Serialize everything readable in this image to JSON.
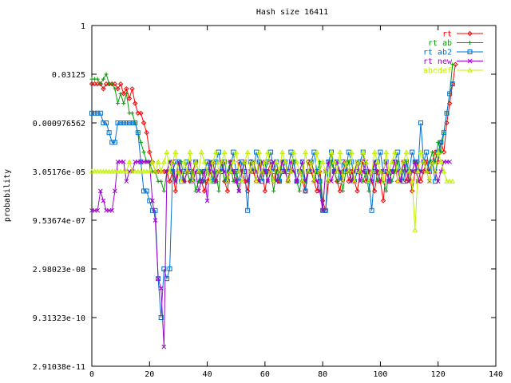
{
  "chart_data": {
    "type": "line",
    "title": "Hash size 16411",
    "xlabel": "",
    "ylabel": "probability",
    "xlim": [
      0,
      140
    ],
    "ylim_log2": [
      -35,
      0
    ],
    "y_scale": "log2",
    "x_ticks": [
      0,
      20,
      40,
      60,
      80,
      100,
      120,
      140
    ],
    "x_tick_labels": [
      "0",
      "20",
      "40",
      "60",
      "80",
      "100",
      "120",
      "140"
    ],
    "y_ticks_log2": [
      0,
      -5,
      -10,
      -15,
      -20,
      -25,
      -30,
      -35
    ],
    "y_tick_labels": [
      "1",
      "0.03125",
      "0.000976562",
      "3.05176e-05",
      "9.53674e-07",
      "2.98023e-08",
      "9.31323e-10",
      "2.91038e-11"
    ],
    "grid": false,
    "legend_position": "top-right",
    "legend_entries": [
      "rt",
      "rt ab",
      "rt ab2",
      "rt new",
      "abcdef"
    ],
    "series": [
      {
        "name": "rt",
        "color": "#ff0000",
        "marker": "diamond",
        "log2_values": [
          -6,
          -6,
          -6,
          -6,
          -6.5,
          -6,
          -6,
          -6,
          -6,
          -6.5,
          -6,
          -7,
          -6.5,
          -7.5,
          -6.5,
          -8,
          -9,
          -9,
          -10,
          -11,
          -13,
          -14,
          -15,
          -15,
          -15,
          -15,
          -15,
          -16,
          -15,
          -17,
          -15,
          -15,
          -16,
          -15,
          -16,
          -15,
          -14,
          -15,
          -16,
          -17,
          -16,
          -15,
          -14,
          -16,
          -15,
          -14,
          -16,
          -17,
          -14,
          -15,
          -16,
          -14,
          -15,
          -16,
          -17,
          -14,
          -15,
          -16,
          -14,
          -15,
          -17,
          -15,
          -14,
          -16,
          -15,
          -16,
          -14,
          -15,
          -16,
          -15,
          -14,
          -16,
          -15,
          -16,
          -17,
          -14,
          -15,
          -16,
          -17,
          -15,
          -18,
          -19,
          -16,
          -14,
          -15,
          -16,
          -17,
          -15,
          -14,
          -16,
          -15,
          -16,
          -17,
          -15,
          -14,
          -16,
          -15,
          -16,
          -17,
          -15,
          -16,
          -18,
          -15,
          -16,
          -15,
          -14,
          -16,
          -15,
          -14,
          -16,
          -15,
          -17,
          -15,
          -14,
          -16,
          -15,
          -14,
          -15,
          -14,
          -13,
          -14,
          -12,
          -13,
          -10,
          -8,
          -6,
          -4
        ]
      },
      {
        "name": "rt ab",
        "color": "#00a000",
        "marker": "plus",
        "log2_values": [
          -5.5,
          -5.5,
          -5.5,
          -6,
          -5.5,
          -5,
          -6,
          -6,
          -6.5,
          -8,
          -7,
          -8,
          -7,
          -9,
          -9,
          -10,
          -11,
          -12,
          -13,
          -14,
          -14,
          -15,
          -15,
          -16,
          -16,
          -17,
          -15,
          -14,
          -15,
          -16,
          -15,
          -14,
          -16,
          -15,
          -16,
          -15,
          -17,
          -16,
          -15,
          -16,
          -15,
          -14,
          -16,
          -15,
          -17,
          -14,
          -16,
          -15,
          -14,
          -16,
          -15,
          -17,
          -15,
          -14,
          -16,
          -15,
          -14,
          -15,
          -16,
          -15,
          -14,
          -16,
          -15,
          -17,
          -15,
          -16,
          -14,
          -15,
          -16,
          -15,
          -14,
          -16,
          -17,
          -15,
          -16,
          -15,
          -14,
          -16,
          -15,
          -14,
          -19,
          -15,
          -16,
          -14,
          -15,
          -16,
          -15,
          -17,
          -15,
          -14,
          -16,
          -15,
          -14,
          -15,
          -16,
          -15,
          -17,
          -15,
          -14,
          -16,
          -15,
          -16,
          -17,
          -15,
          -16,
          -15,
          -14,
          -16,
          -15,
          -14,
          -16,
          -15,
          -14,
          -16,
          -15,
          -14,
          -15,
          -14,
          -13,
          -14,
          -12,
          -13,
          -11,
          -9,
          -7,
          -4
        ]
      },
      {
        "name": "rt ab2",
        "color": "#0070d0",
        "marker": "square",
        "log2_values": [
          -9,
          -9,
          -9,
          -9,
          -10,
          -10,
          -11,
          -12,
          -12,
          -10,
          -10,
          -10,
          -10,
          -10,
          -10,
          -10,
          -11,
          -14,
          -17,
          -17,
          -18,
          -19,
          -19,
          -26,
          -30,
          -25,
          -26,
          -25,
          -15,
          -14,
          -14,
          -16,
          -15,
          -14,
          -15,
          -16,
          -14,
          -15,
          -16,
          -15,
          -14,
          -15,
          -16,
          -14,
          -13,
          -15,
          -14,
          -16,
          -15,
          -13,
          -15,
          -16,
          -14,
          -15,
          -19,
          -14,
          -15,
          -13,
          -14,
          -16,
          -15,
          -14,
          -13,
          -15,
          -14,
          -16,
          -15,
          -14,
          -15,
          -13,
          -14,
          -16,
          -15,
          -14,
          -17,
          -15,
          -14,
          -13,
          -15,
          -16,
          -19,
          -19,
          -14,
          -13,
          -15,
          -14,
          -16,
          -14,
          -15,
          -13,
          -14,
          -16,
          -15,
          -14,
          -13,
          -15,
          -16,
          -19,
          -15,
          -14,
          -13,
          -15,
          -14,
          -16,
          -15,
          -14,
          -13,
          -15,
          -16,
          -14,
          -15,
          -13,
          -14,
          -15,
          -10,
          -14,
          -13,
          -15,
          -14,
          -16,
          -13,
          -12,
          -11,
          -9,
          -7,
          -6
        ]
      },
      {
        "name": "rt new",
        "color": "#a000d0",
        "marker": "cross",
        "log2_values": [
          -19,
          -19,
          -19,
          -17,
          -18,
          -19,
          -19,
          -19,
          -17,
          -14,
          -14,
          -14,
          -16,
          -15,
          -15,
          -14,
          -14,
          -14,
          -14,
          -14,
          -14,
          -18,
          -20,
          -26,
          -27,
          -33,
          -15,
          -14,
          -14,
          -16,
          -14,
          -15,
          -16,
          -15,
          -14,
          -16,
          -15,
          -17,
          -16,
          -15,
          -18,
          -14,
          -15,
          -16,
          -15,
          -14,
          -15,
          -16,
          -14,
          -15,
          -16,
          -17,
          -15,
          -14,
          -16,
          -15,
          -14,
          -15,
          -16,
          -14,
          -15,
          -16,
          -15,
          -14,
          -16,
          -15,
          -14,
          -15,
          -16,
          -14,
          -15,
          -16,
          -15,
          -14,
          -16,
          -15,
          -14,
          -15,
          -16,
          -17,
          -19,
          -15,
          -14,
          -16,
          -15,
          -14,
          -15,
          -16,
          -14,
          -15,
          -16,
          -15,
          -14,
          -16,
          -15,
          -14,
          -15,
          -16,
          -14,
          -15,
          -16,
          -15,
          -14,
          -16,
          -15,
          -14,
          -15,
          -16,
          -14,
          -15,
          -16,
          -15,
          -14,
          -16,
          -15,
          -14,
          -15,
          -16,
          -14,
          -15,
          -16,
          -15,
          -14,
          -14,
          -14
        ]
      },
      {
        "name": "abcdef",
        "color": "#c0f000",
        "marker": "triangle",
        "log2_values": [
          -15,
          -15,
          -15,
          -15,
          -15,
          -15,
          -15,
          -15,
          -15,
          -15,
          -15,
          -15,
          -15,
          -14,
          -15,
          -15,
          -15,
          -15,
          -15,
          -15,
          -15,
          -14,
          -15,
          -14,
          -15,
          -14,
          -13,
          -15,
          -14,
          -13,
          -15,
          -16,
          -14,
          -15,
          -13,
          -16,
          -14,
          -15,
          -13,
          -14,
          -15,
          -16,
          -14,
          -13,
          -15,
          -14,
          -13,
          -16,
          -15,
          -14,
          -13,
          -15,
          -16,
          -14,
          -13,
          -15,
          -14,
          -16,
          -13,
          -15,
          -14,
          -13,
          -15,
          -16,
          -14,
          -15,
          -13,
          -14,
          -16,
          -15,
          -13,
          -14,
          -15,
          -16,
          -13,
          -15,
          -14,
          -16,
          -13,
          -15,
          -14,
          -15,
          -16,
          -13,
          -14,
          -15,
          -13,
          -16,
          -14,
          -15,
          -13,
          -16,
          -14,
          -15,
          -13,
          -14,
          -16,
          -15,
          -13,
          -14,
          -15,
          -16,
          -13,
          -15,
          -14,
          -13,
          -16,
          -15,
          -14,
          -13,
          -15,
          -16,
          -21,
          -15,
          -13,
          -14,
          -15,
          -16,
          -14,
          -15,
          -13,
          -14,
          -15,
          -16,
          -16,
          -16
        ]
      }
    ]
  }
}
